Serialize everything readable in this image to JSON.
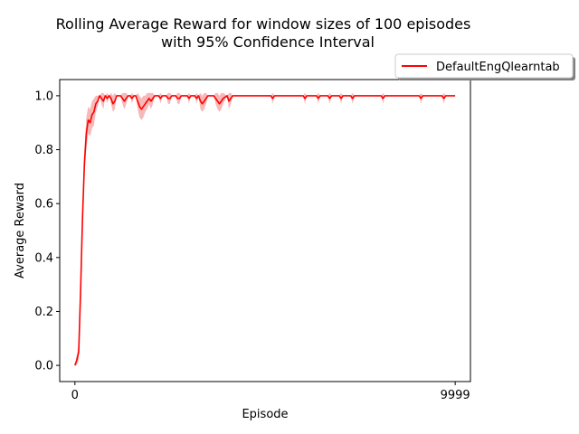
{
  "chart_data": {
    "type": "line",
    "title_line1": "Rolling Average Reward for window sizes of 100 episodes",
    "title_line2": "with 95% Confidence Interval",
    "xlabel": "Episode",
    "ylabel": "Average Reward",
    "xlim": [
      -400,
      10400
    ],
    "ylim": [
      -0.06,
      1.06
    ],
    "x_ticks": [
      0,
      9999
    ],
    "x_tick_labels": [
      "0",
      "9999"
    ],
    "y_ticks": [
      0.0,
      0.2,
      0.4,
      0.6,
      0.8,
      1.0
    ],
    "y_tick_labels": [
      "0.0",
      "0.2",
      "0.4",
      "0.6",
      "0.8",
      "1.0"
    ],
    "legend_placement": "upper-right-outside",
    "series": [
      {
        "name": "DefaultEngQlearntab",
        "color": "#ff0000",
        "ci_color": "#f4a0a0",
        "points": [
          [
            0,
            0.0
          ],
          [
            50,
            0.02
          ],
          [
            100,
            0.05
          ],
          [
            150,
            0.28
          ],
          [
            200,
            0.55
          ],
          [
            250,
            0.75
          ],
          [
            300,
            0.86
          ],
          [
            350,
            0.91
          ],
          [
            400,
            0.9
          ],
          [
            450,
            0.93
          ],
          [
            500,
            0.94
          ],
          [
            550,
            0.97
          ],
          [
            600,
            0.98
          ],
          [
            650,
            1.0
          ],
          [
            700,
            0.99
          ],
          [
            750,
            0.98
          ],
          [
            800,
            1.0
          ],
          [
            850,
            0.99
          ],
          [
            900,
            1.0
          ],
          [
            950,
            0.99
          ],
          [
            1000,
            0.97
          ],
          [
            1050,
            0.98
          ],
          [
            1100,
            1.0
          ],
          [
            1200,
            1.0
          ],
          [
            1250,
            0.99
          ],
          [
            1300,
            0.98
          ],
          [
            1350,
            0.99
          ],
          [
            1400,
            1.0
          ],
          [
            1450,
            1.0
          ],
          [
            1500,
            0.99
          ],
          [
            1550,
            1.0
          ],
          [
            1600,
            1.0
          ],
          [
            1650,
            0.98
          ],
          [
            1700,
            0.96
          ],
          [
            1750,
            0.95
          ],
          [
            1800,
            0.96
          ],
          [
            1850,
            0.97
          ],
          [
            1900,
            0.98
          ],
          [
            1950,
            0.99
          ],
          [
            2000,
            0.98
          ],
          [
            2050,
            0.99
          ],
          [
            2100,
            1.0
          ],
          [
            2150,
            1.0
          ],
          [
            2200,
            1.0
          ],
          [
            2250,
            0.99
          ],
          [
            2300,
            1.0
          ],
          [
            2400,
            1.0
          ],
          [
            2450,
            0.99
          ],
          [
            2500,
            0.99
          ],
          [
            2550,
            1.0
          ],
          [
            2650,
            1.0
          ],
          [
            2700,
            0.99
          ],
          [
            2750,
            0.99
          ],
          [
            2800,
            1.0
          ],
          [
            2950,
            1.0
          ],
          [
            3000,
            0.99
          ],
          [
            3050,
            1.0
          ],
          [
            3150,
            1.0
          ],
          [
            3200,
            0.99
          ],
          [
            3250,
            1.0
          ],
          [
            3300,
            0.98
          ],
          [
            3350,
            0.97
          ],
          [
            3400,
            0.98
          ],
          [
            3450,
            0.99
          ],
          [
            3500,
            1.0
          ],
          [
            3650,
            1.0
          ],
          [
            3700,
            0.99
          ],
          [
            3750,
            0.98
          ],
          [
            3800,
            0.97
          ],
          [
            3850,
            0.98
          ],
          [
            3900,
            0.99
          ],
          [
            4000,
            1.0
          ],
          [
            4050,
            0.98
          ],
          [
            4100,
            0.99
          ],
          [
            4150,
            1.0
          ],
          [
            5150,
            1.0
          ],
          [
            5200,
            0.99
          ],
          [
            5250,
            1.0
          ],
          [
            6000,
            1.0
          ],
          [
            6050,
            0.99
          ],
          [
            6100,
            1.0
          ],
          [
            6350,
            1.0
          ],
          [
            6400,
            0.99
          ],
          [
            6450,
            1.0
          ],
          [
            6650,
            1.0
          ],
          [
            6700,
            0.99
          ],
          [
            6750,
            1.0
          ],
          [
            6950,
            1.0
          ],
          [
            7000,
            0.99
          ],
          [
            7050,
            1.0
          ],
          [
            7250,
            1.0
          ],
          [
            7300,
            0.99
          ],
          [
            7350,
            1.0
          ],
          [
            8050,
            1.0
          ],
          [
            8100,
            0.99
          ],
          [
            8150,
            1.0
          ],
          [
            9050,
            1.0
          ],
          [
            9100,
            0.99
          ],
          [
            9150,
            1.0
          ],
          [
            9650,
            1.0
          ],
          [
            9700,
            0.99
          ],
          [
            9750,
            1.0
          ],
          [
            9999,
            1.0
          ]
        ],
        "ci_half_width": [
          0.0,
          0.02,
          0.03,
          0.02,
          0.03,
          0.05,
          0.06,
          0.05,
          0.05,
          0.05,
          0.05,
          0.03,
          0.02,
          0.0,
          0.02,
          0.03,
          0.0,
          0.02,
          0.0,
          0.02,
          0.03,
          0.03,
          0.0,
          0.0,
          0.02,
          0.03,
          0.02,
          0.0,
          0.0,
          0.02,
          0.0,
          0.0,
          0.03,
          0.04,
          0.04,
          0.04,
          0.03,
          0.03,
          0.02,
          0.03,
          0.02,
          0.0,
          0.0,
          0.0,
          0.02,
          0.0,
          0.0,
          0.02,
          0.02,
          0.0,
          0.0,
          0.02,
          0.02,
          0.0,
          0.0,
          0.02,
          0.0,
          0.0,
          0.02,
          0.0,
          0.03,
          0.03,
          0.03,
          0.02,
          0.0,
          0.0,
          0.02,
          0.03,
          0.03,
          0.03,
          0.02,
          0.0,
          0.03,
          0.02,
          0.0,
          0.0,
          0.02,
          0.0,
          0.0,
          0.02,
          0.0,
          0.0,
          0.02,
          0.0,
          0.0,
          0.02,
          0.0,
          0.0,
          0.02,
          0.0,
          0.0,
          0.02,
          0.0,
          0.0,
          0.02,
          0.0,
          0.0,
          0.02,
          0.0,
          0.0,
          0.02,
          0.0,
          0.0
        ]
      }
    ]
  }
}
